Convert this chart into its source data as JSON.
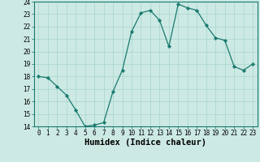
{
  "x": [
    0,
    1,
    2,
    3,
    4,
    5,
    6,
    7,
    8,
    9,
    10,
    11,
    12,
    13,
    14,
    15,
    16,
    17,
    18,
    19,
    20,
    21,
    22,
    23
  ],
  "y": [
    18.0,
    17.9,
    17.2,
    16.5,
    15.3,
    14.0,
    14.1,
    14.3,
    16.8,
    18.5,
    21.6,
    23.1,
    23.3,
    22.5,
    20.4,
    23.8,
    23.5,
    23.3,
    22.1,
    21.1,
    20.9,
    18.8,
    18.5,
    19.0
  ],
  "line_color": "#1a7a6e",
  "marker": "D",
  "marker_size": 2.2,
  "bg_color": "#cce9e4",
  "grid_color": "#a8d5cc",
  "xlabel": "Humidex (Indice chaleur)",
  "ylim": [
    14,
    24
  ],
  "xlim": [
    -0.5,
    23.5
  ],
  "yticks": [
    14,
    15,
    16,
    17,
    18,
    19,
    20,
    21,
    22,
    23,
    24
  ],
  "xticks": [
    0,
    1,
    2,
    3,
    4,
    5,
    6,
    7,
    8,
    9,
    10,
    11,
    12,
    13,
    14,
    15,
    16,
    17,
    18,
    19,
    20,
    21,
    22,
    23
  ],
  "tick_label_fontsize": 5.5,
  "xlabel_fontsize": 7.5
}
